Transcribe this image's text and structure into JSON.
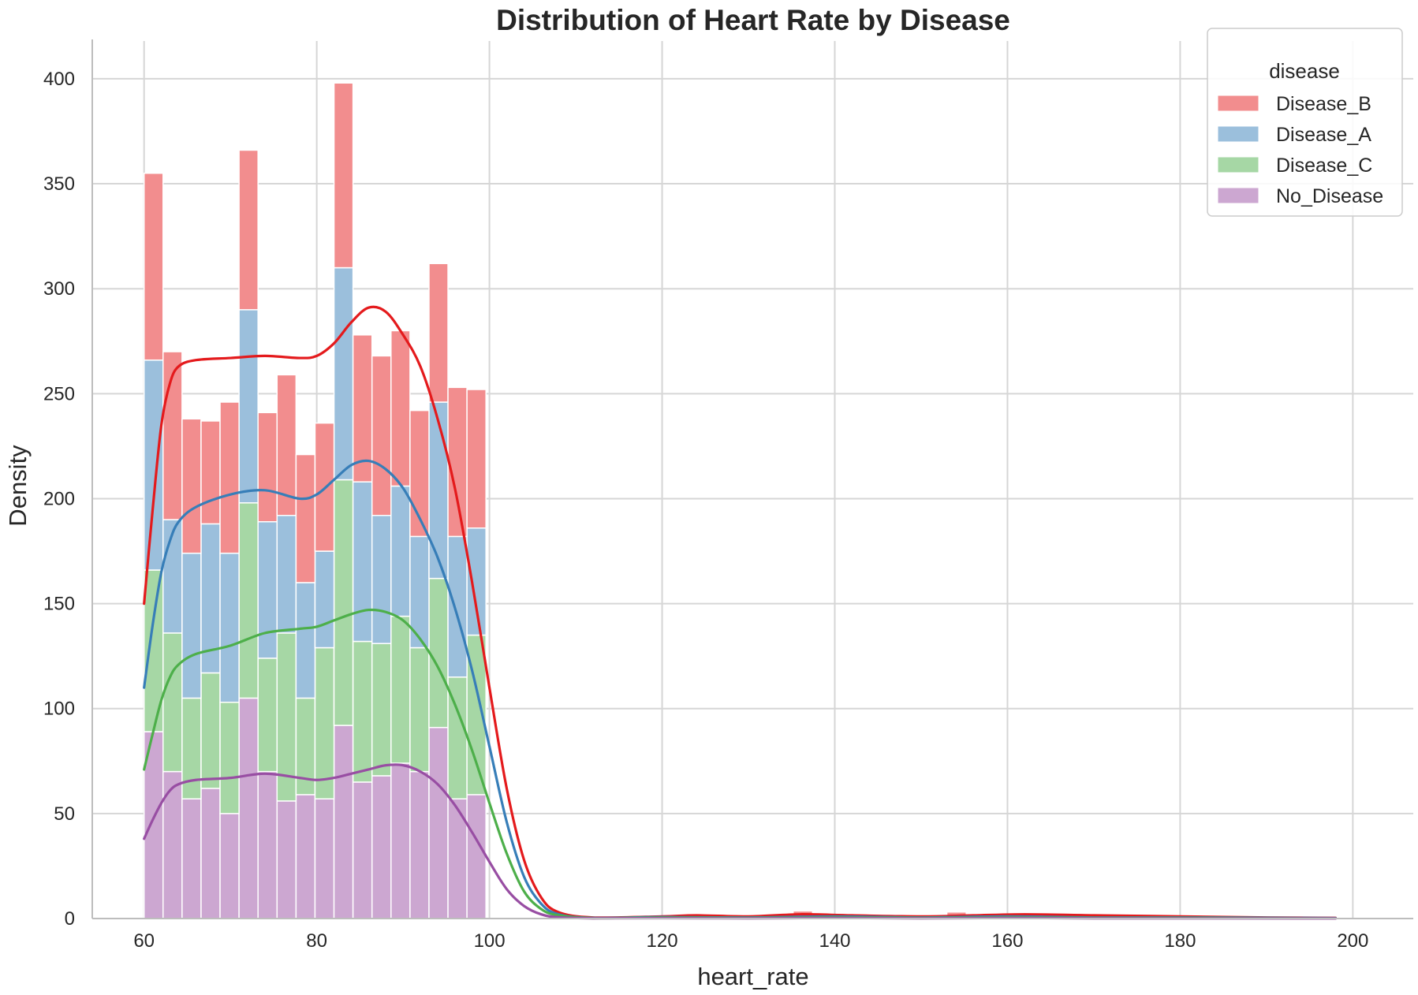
{
  "chart_data": {
    "type": "histogram",
    "title": "Distribution of Heart Rate by Disease",
    "xlabel": "heart_rate",
    "ylabel": "Density",
    "xlim": [
      54,
      207
    ],
    "ylim": [
      0,
      418
    ],
    "x_ticks": [
      60,
      80,
      100,
      120,
      140,
      160,
      180,
      200
    ],
    "y_ticks": [
      0,
      50,
      100,
      150,
      200,
      250,
      300,
      350,
      400
    ],
    "grid": true,
    "stacked": true,
    "legend": {
      "title": "disease",
      "placement": "top-right"
    },
    "bin_edges": [
      60,
      62.2,
      64.4,
      66.6,
      68.8,
      71,
      73.2,
      75.4,
      77.6,
      79.8,
      82,
      84.2,
      86.4,
      88.6,
      90.8,
      93,
      95.2,
      97.4,
      99.6
    ],
    "series": [
      {
        "name": "No_Disease",
        "color": "#984ea3",
        "values": [
          89,
          70,
          57,
          62,
          50,
          105,
          70,
          56,
          59,
          57,
          92,
          65,
          68,
          74,
          70,
          91,
          57,
          59
        ]
      },
      {
        "name": "Disease_C",
        "color": "#4daf4a",
        "values": [
          77,
          66,
          48,
          55,
          53,
          93,
          54,
          80,
          46,
          72,
          117,
          67,
          63,
          70,
          59,
          71,
          58,
          76
        ]
      },
      {
        "name": "Disease_A",
        "color": "#377eb8",
        "values": [
          100,
          54,
          69,
          71,
          71,
          92,
          65,
          56,
          55,
          46,
          101,
          76,
          61,
          62,
          53,
          84,
          67,
          51
        ]
      },
      {
        "name": "Disease_B",
        "color": "#e41a1c",
        "values": [
          89,
          80,
          64,
          49,
          72,
          76,
          52,
          67,
          61,
          61,
          88,
          70,
          76,
          74,
          60,
          66,
          71,
          66
        ]
      }
    ],
    "kde": [
      {
        "name": "Disease_B",
        "color": "#e41a1c",
        "points": [
          [
            60,
            150
          ],
          [
            61,
            195
          ],
          [
            62,
            235
          ],
          [
            63,
            255
          ],
          [
            64,
            263
          ],
          [
            66,
            266
          ],
          [
            70,
            267
          ],
          [
            74,
            268
          ],
          [
            78,
            267
          ],
          [
            80,
            268
          ],
          [
            82,
            274
          ],
          [
            84,
            284
          ],
          [
            86,
            291
          ],
          [
            88,
            289
          ],
          [
            90,
            278
          ],
          [
            92,
            263
          ],
          [
            94,
            238
          ],
          [
            96,
            205
          ],
          [
            98,
            160
          ],
          [
            100,
            110
          ],
          [
            102,
            62
          ],
          [
            104,
            28
          ],
          [
            106,
            10
          ],
          [
            108,
            3
          ],
          [
            112,
            0.5
          ],
          [
            120,
            1
          ],
          [
            124,
            1.5
          ],
          [
            130,
            1
          ],
          [
            136,
            2
          ],
          [
            142,
            1.5
          ],
          [
            150,
            1
          ],
          [
            156,
            1.5
          ],
          [
            162,
            2
          ],
          [
            170,
            1.5
          ],
          [
            180,
            1
          ],
          [
            190,
            0.5
          ],
          [
            198,
            0.3
          ]
        ]
      },
      {
        "name": "Disease_A",
        "color": "#377eb8",
        "points": [
          [
            60,
            110
          ],
          [
            61,
            140
          ],
          [
            62,
            165
          ],
          [
            63,
            180
          ],
          [
            64,
            189
          ],
          [
            66,
            196
          ],
          [
            70,
            202
          ],
          [
            74,
            204
          ],
          [
            78,
            200
          ],
          [
            80,
            202
          ],
          [
            82,
            209
          ],
          [
            84,
            216
          ],
          [
            86,
            218
          ],
          [
            88,
            214
          ],
          [
            90,
            205
          ],
          [
            92,
            190
          ],
          [
            94,
            172
          ],
          [
            96,
            148
          ],
          [
            98,
            118
          ],
          [
            100,
            82
          ],
          [
            102,
            46
          ],
          [
            104,
            20
          ],
          [
            106,
            7
          ],
          [
            108,
            2
          ],
          [
            112,
            0.3
          ],
          [
            120,
            0.7
          ],
          [
            130,
            0.5
          ],
          [
            140,
            1
          ],
          [
            150,
            0.5
          ],
          [
            160,
            1
          ],
          [
            170,
            0.5
          ],
          [
            180,
            0.5
          ],
          [
            198,
            0.2
          ]
        ]
      },
      {
        "name": "Disease_C",
        "color": "#4daf4a",
        "points": [
          [
            60,
            71
          ],
          [
            61,
            88
          ],
          [
            62,
            104
          ],
          [
            63,
            115
          ],
          [
            64,
            121
          ],
          [
            66,
            126
          ],
          [
            70,
            130
          ],
          [
            74,
            136
          ],
          [
            78,
            138
          ],
          [
            80,
            139
          ],
          [
            82,
            142
          ],
          [
            84,
            145
          ],
          [
            86,
            147
          ],
          [
            88,
            146
          ],
          [
            90,
            142
          ],
          [
            92,
            133
          ],
          [
            94,
            120
          ],
          [
            96,
            102
          ],
          [
            98,
            80
          ],
          [
            100,
            55
          ],
          [
            102,
            31
          ],
          [
            104,
            13
          ],
          [
            106,
            4.5
          ],
          [
            108,
            1.5
          ],
          [
            112,
            0.2
          ],
          [
            120,
            0.5
          ],
          [
            130,
            0.3
          ],
          [
            140,
            0.6
          ],
          [
            150,
            0.3
          ],
          [
            160,
            0.6
          ],
          [
            170,
            0.3
          ],
          [
            180,
            0.3
          ],
          [
            198,
            0.1
          ]
        ]
      },
      {
        "name": "No_Disease",
        "color": "#984ea3",
        "points": [
          [
            60,
            38
          ],
          [
            61,
            47
          ],
          [
            62,
            55
          ],
          [
            63,
            61
          ],
          [
            64,
            64
          ],
          [
            66,
            66
          ],
          [
            70,
            67
          ],
          [
            74,
            69
          ],
          [
            78,
            67
          ],
          [
            80,
            66
          ],
          [
            82,
            67
          ],
          [
            84,
            69
          ],
          [
            86,
            71
          ],
          [
            88,
            73
          ],
          [
            90,
            73
          ],
          [
            92,
            70
          ],
          [
            94,
            64
          ],
          [
            96,
            54
          ],
          [
            98,
            41
          ],
          [
            100,
            27
          ],
          [
            102,
            14
          ],
          [
            104,
            6
          ],
          [
            106,
            2
          ],
          [
            108,
            0.6
          ],
          [
            112,
            0.1
          ],
          [
            120,
            0.2
          ],
          [
            130,
            0.1
          ],
          [
            140,
            0.3
          ],
          [
            150,
            0.1
          ],
          [
            160,
            0.3
          ],
          [
            170,
            0.1
          ],
          [
            198,
            0.05
          ]
        ]
      }
    ],
    "tail_bars": [
      {
        "x0": 135.2,
        "x1": 137.4,
        "total": 3.5
      },
      {
        "x0": 153,
        "x1": 155.2,
        "total": 3
      },
      {
        "x0": 161.6,
        "x1": 163.8,
        "total": 2.5
      },
      {
        "x0": 170.4,
        "x1": 172.6,
        "total": 2
      }
    ]
  }
}
